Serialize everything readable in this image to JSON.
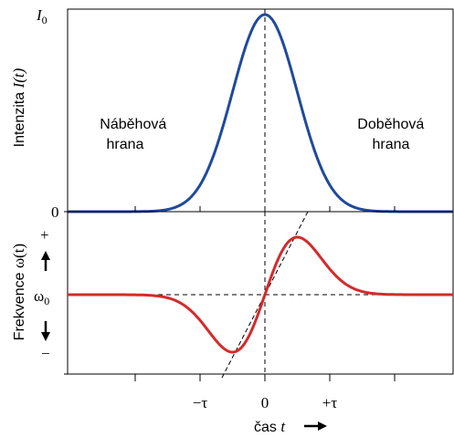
{
  "chart_data": [
    {
      "type": "line",
      "panel": "intensity",
      "ylabel": "Intenzita",
      "ylabel_var": "I(t)",
      "yticks": [
        {
          "base": "I",
          "sub": "0",
          "value": 1
        },
        {
          "base": "0",
          "sub": "",
          "value": 0
        }
      ],
      "annotations": [
        {
          "lines": [
            "Náběhová",
            "hrana"
          ]
        },
        {
          "lines": [
            "Doběhová",
            "hrana"
          ]
        }
      ],
      "xlim": [
        -1.75,
        1.75
      ],
      "ylim": [
        0,
        1
      ],
      "series": [
        {
          "shape": "gaussian",
          "peak": 1,
          "center": 0,
          "sigma": 0.5,
          "x": [
            -1.75,
            -1.0,
            -0.5,
            0,
            0.5,
            1.0,
            1.75
          ],
          "y": [
            0.002,
            0.135,
            0.61,
            1.0,
            0.61,
            0.135,
            0.002
          ]
        }
      ],
      "reference_lines": [
        "vertical dashed line at t = 0"
      ],
      "colors": {
        "curve": "#1f4a9c"
      }
    },
    {
      "type": "line",
      "panel": "frequency",
      "ylabel": "Frekvence",
      "ylabel_var": "ω(t)",
      "yticks": [
        {
          "label": "+",
          "value": 1
        },
        {
          "base": "ω",
          "sub": "0",
          "value": 0
        },
        {
          "label": "−",
          "value": -1
        }
      ],
      "xlabel": "čas",
      "xlabel_var": "t",
      "xticks": [
        {
          "label": "−τ",
          "value": -1
        },
        {
          "label": "0",
          "value": 0
        },
        {
          "label": "+τ",
          "value": 1
        }
      ],
      "xlim": [
        -1.75,
        1.75
      ],
      "ylim": [
        -1,
        1
      ],
      "series": [
        {
          "shape": "derivative of gaussian",
          "center": 0,
          "sigma": 0.5,
          "x": [
            -1.75,
            -1.0,
            -0.5,
            0,
            0.5,
            1.0,
            1.75
          ],
          "y": [
            -0.01,
            -0.37,
            -0.82,
            0,
            0.82,
            0.37,
            0.01
          ]
        }
      ],
      "reference_lines": [
        "horizontal dashed line at ω0",
        "vertical dashed line at t = 0",
        "dashed tangent line through origin"
      ],
      "colors": {
        "curve": "#d42a2a"
      }
    }
  ]
}
